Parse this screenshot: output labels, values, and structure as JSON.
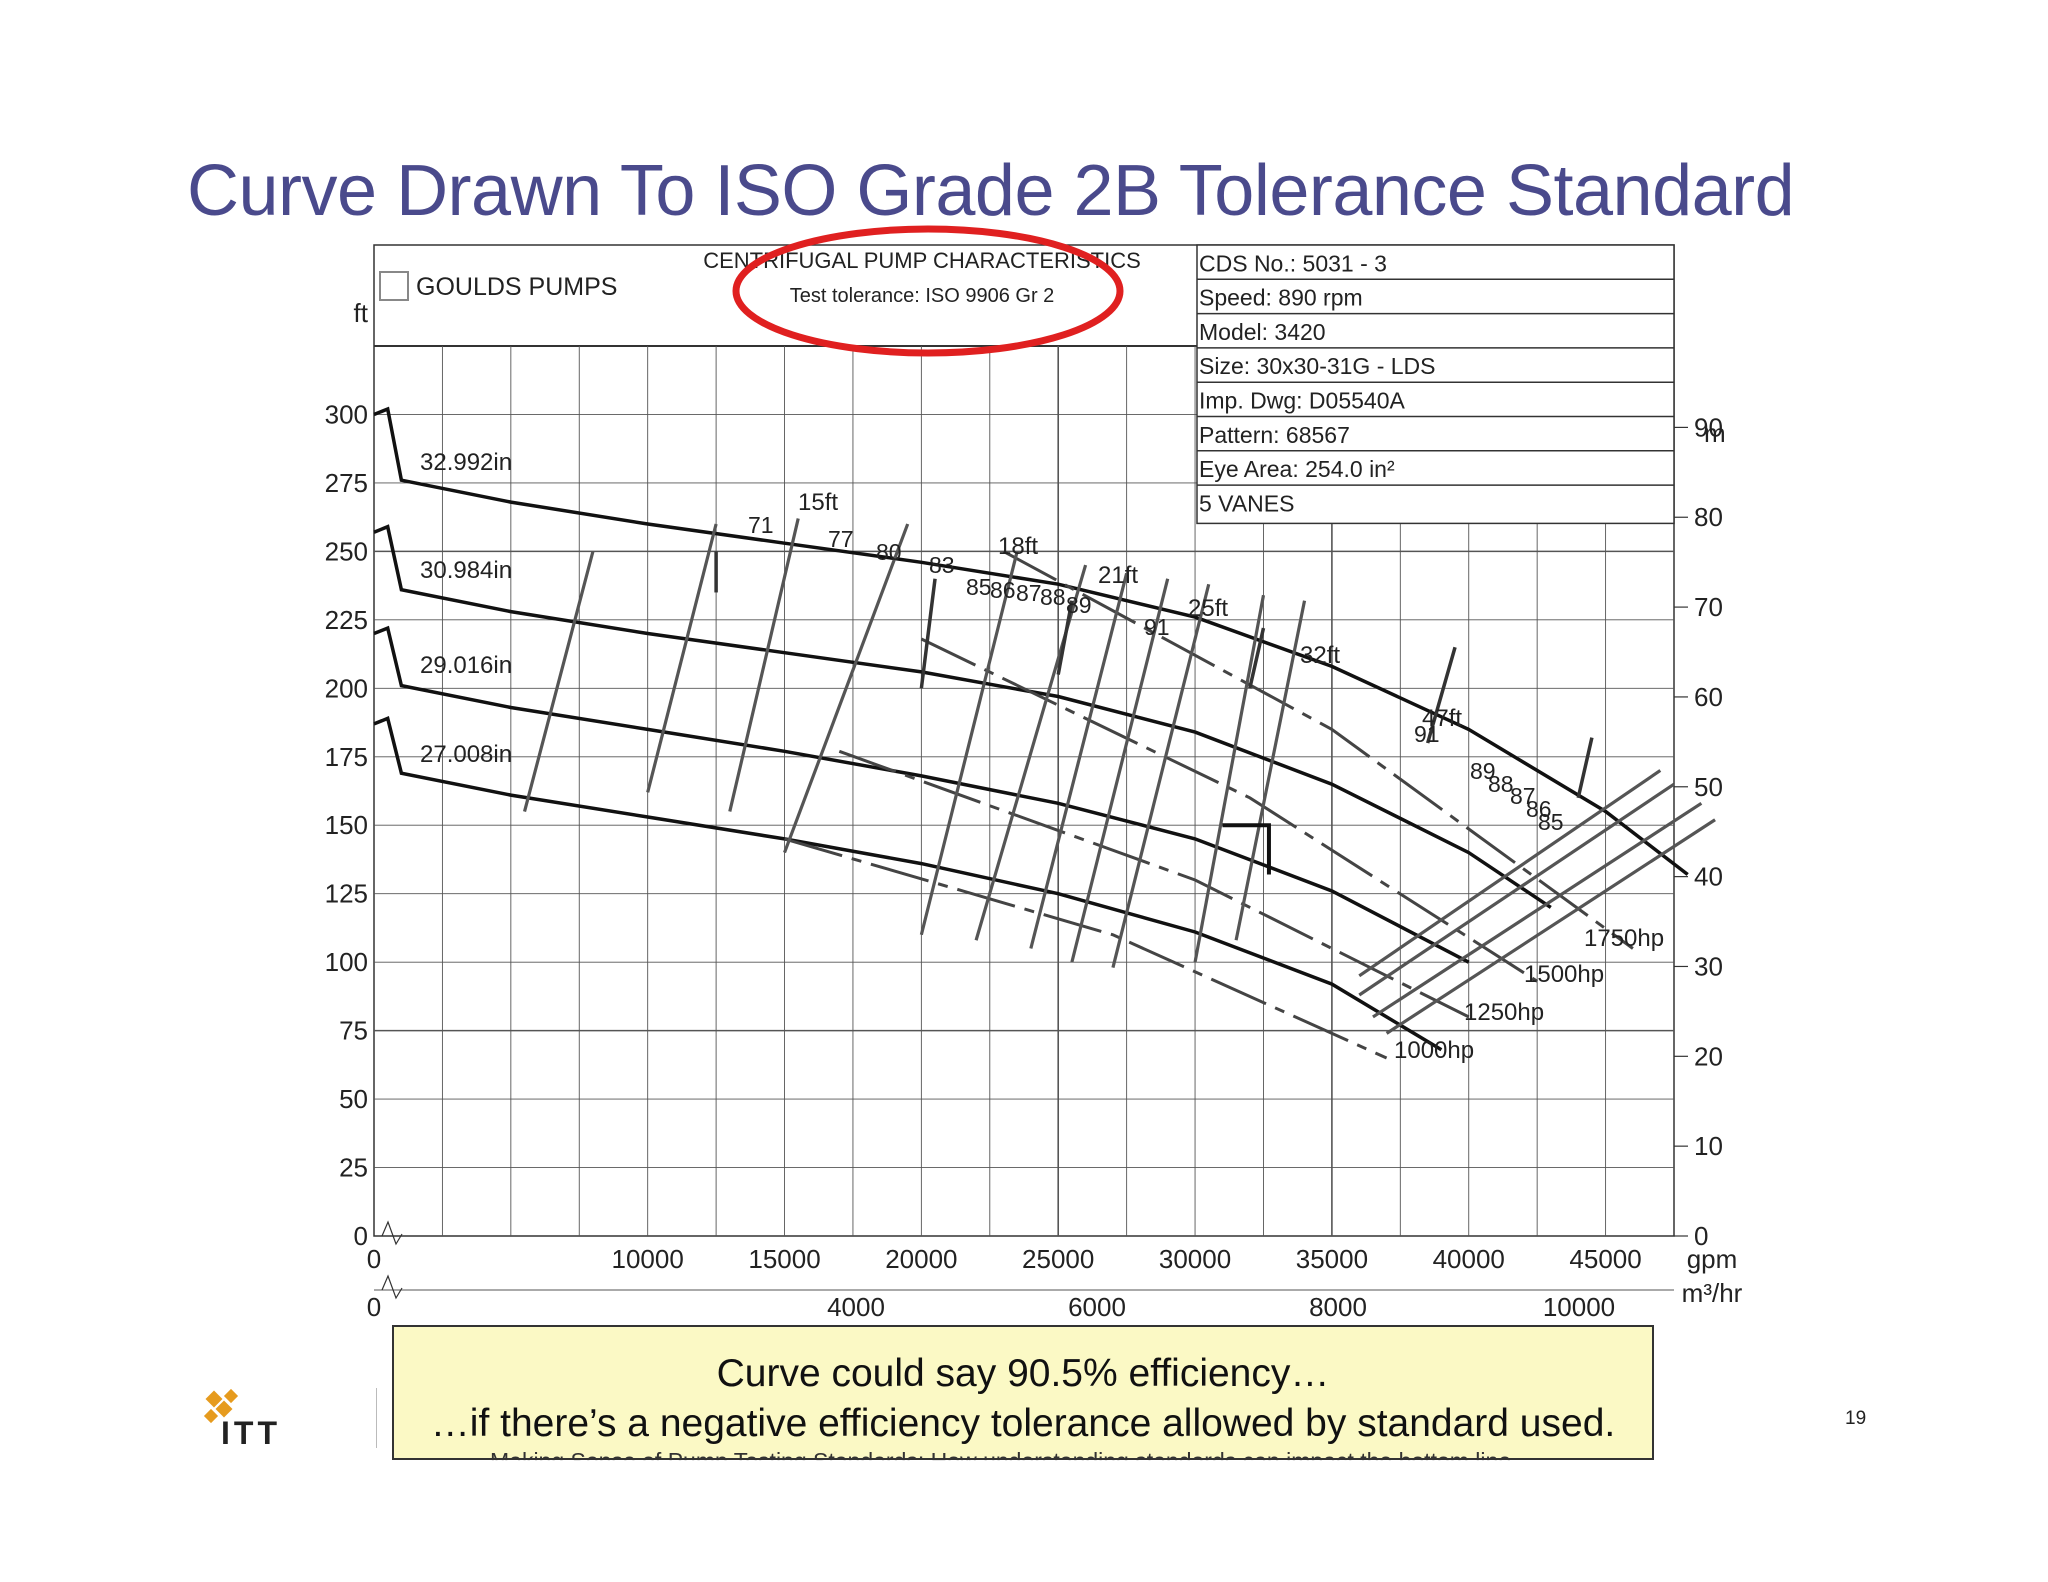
{
  "slide": {
    "title": "Curve Drawn To ISO Grade 2B Tolerance Standard",
    "callout_line1": "Curve could say 90.5% efficiency…",
    "callout_line2": "…if there’s a negative efficiency tolerance allowed by standard used.",
    "footer": "Making Sense of Pump Testing Standards: How understanding standards can impact the bottom line",
    "page_number": "19",
    "logo_text": "ITT",
    "highlight_color": "#e02020",
    "title_color": "#4a4a8c",
    "callout_color": "#fbf9c5"
  },
  "chart_data": {
    "type": "line",
    "header": {
      "brand": "GOULDS PUMPS",
      "title": "CENTRIFUGAL PUMP CHARACTERISTICS",
      "tolerance": "Test tolerance: ISO 9906 Gr 2",
      "info": [
        "CDS No.: 5031 - 3",
        "Speed: 890 rpm",
        "Model: 3420",
        "Size: 30x30-31G - LDS",
        "Imp. Dwg: D05540A",
        "Pattern: 68567",
        "Eye Area: 254.0 in²",
        "5 VANES"
      ]
    },
    "x_axis": {
      "unit": "gpm",
      "ticks": [
        "0",
        "10000",
        "15000",
        "20000",
        "25000",
        "30000",
        "35000",
        "40000",
        "45000"
      ],
      "xlim": [
        0,
        47500
      ]
    },
    "x2_axis": {
      "unit": "m³/hr",
      "ticks": [
        "0",
        "4000",
        "6000",
        "8000",
        "10000"
      ]
    },
    "y_axis": {
      "unit": "ft",
      "ticks": [
        "0",
        "25",
        "50",
        "75",
        "100",
        "125",
        "150",
        "175",
        "200",
        "225",
        "250",
        "275",
        "300"
      ],
      "ylim": [
        0,
        325
      ]
    },
    "y2_axis": {
      "unit": "m",
      "ticks": [
        "0",
        "10",
        "20",
        "30",
        "40",
        "50",
        "60",
        "70",
        "80",
        "90"
      ]
    },
    "grid": true,
    "head_curves": [
      {
        "name": "32.992in",
        "points": [
          [
            0,
            300
          ],
          [
            500,
            302
          ],
          [
            1000,
            276
          ],
          [
            5000,
            268
          ],
          [
            10000,
            260
          ],
          [
            15000,
            253
          ],
          [
            20000,
            246
          ],
          [
            25000,
            238
          ],
          [
            30000,
            226
          ],
          [
            35000,
            208
          ],
          [
            40000,
            185
          ],
          [
            45000,
            155
          ],
          [
            48000,
            132
          ]
        ]
      },
      {
        "name": "30.984in",
        "points": [
          [
            0,
            257
          ],
          [
            500,
            259
          ],
          [
            1000,
            236
          ],
          [
            5000,
            228
          ],
          [
            10000,
            220
          ],
          [
            15000,
            213
          ],
          [
            20000,
            206
          ],
          [
            25000,
            197
          ],
          [
            30000,
            184
          ],
          [
            35000,
            165
          ],
          [
            40000,
            140
          ],
          [
            43000,
            120
          ]
        ]
      },
      {
        "name": "29.016in",
        "points": [
          [
            0,
            220
          ],
          [
            500,
            222
          ],
          [
            1000,
            201
          ],
          [
            5000,
            193
          ],
          [
            10000,
            185
          ],
          [
            15000,
            177
          ],
          [
            20000,
            168
          ],
          [
            25000,
            158
          ],
          [
            30000,
            145
          ],
          [
            35000,
            126
          ],
          [
            40000,
            100
          ]
        ]
      },
      {
        "name": "27.008in",
        "points": [
          [
            0,
            187
          ],
          [
            500,
            189
          ],
          [
            1000,
            169
          ],
          [
            5000,
            161
          ],
          [
            10000,
            153
          ],
          [
            15000,
            145
          ],
          [
            20000,
            136
          ],
          [
            25000,
            125
          ],
          [
            30000,
            111
          ],
          [
            35000,
            92
          ],
          [
            39000,
            68
          ]
        ]
      }
    ],
    "power_curves": [
      {
        "name": "1750hp",
        "points": [
          [
            23000,
            250
          ],
          [
            35000,
            185
          ],
          [
            46000,
            105
          ]
        ]
      },
      {
        "name": "1500hp",
        "points": [
          [
            20000,
            218
          ],
          [
            32000,
            160
          ],
          [
            42500,
            93
          ]
        ]
      },
      {
        "name": "1250hp",
        "points": [
          [
            17000,
            177
          ],
          [
            30000,
            130
          ],
          [
            40000,
            80
          ]
        ]
      },
      {
        "name": "1000hp",
        "points": [
          [
            15000,
            145
          ],
          [
            27000,
            110
          ],
          [
            37000,
            65
          ]
        ]
      }
    ],
    "efficiency_labels": [
      "71",
      "77",
      "80",
      "83",
      "85",
      "86",
      "87",
      "88",
      "89",
      "91",
      "91",
      "89",
      "88",
      "87",
      "86",
      "85"
    ],
    "npsh_labels": [
      "15ft",
      "18ft",
      "21ft",
      "25ft",
      "32ft",
      "47ft"
    ],
    "annotations": [
      "Test tolerance: ISO 9906 Gr 2"
    ]
  }
}
